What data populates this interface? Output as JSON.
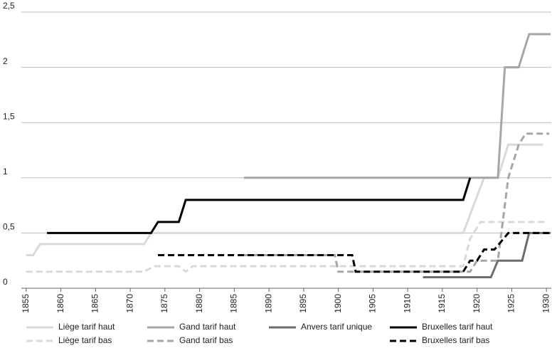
{
  "chart_data": {
    "type": "line",
    "xlim": [
      1854.3,
      1930.7
    ],
    "xticks": [
      1855,
      1860,
      1865,
      1870,
      1875,
      1880,
      1885,
      1890,
      1895,
      1900,
      1905,
      1910,
      1915,
      1920,
      1925,
      1930
    ],
    "ylim": [
      0,
      2.5
    ],
    "yticks": [
      0,
      {
        "value": 0.5,
        "label": "0,5"
      },
      1,
      {
        "value": 1.5,
        "label": "1,5"
      },
      2,
      {
        "value": 2.5,
        "label": "2,5"
      }
    ],
    "grid": true,
    "legend": "bottom",
    "series": [
      {
        "name": "Liège tarif haut",
        "color": "#d9d9d9",
        "dash": false,
        "x": [
          1855,
          1856,
          1857,
          1872,
          1873,
          1918,
          1921,
          1923,
          1924.5,
          1929.5
        ],
        "values": [
          0.3,
          0.3,
          0.4,
          0.4,
          0.5,
          0.5,
          1,
          1,
          1.3,
          1.3
        ]
      },
      {
        "name": "Gand tarif haut",
        "color": "#a6a6a6",
        "dash": false,
        "x": [
          1886.4,
          1923,
          1924,
          1926,
          1927.5,
          1930.6
        ],
        "values": [
          1,
          1,
          2,
          2,
          2.3,
          2.3
        ]
      },
      {
        "name": "Anvers tarif unique",
        "color": "#6d6d6d",
        "dash": false,
        "x": [
          1912.2,
          1922,
          1923,
          1926.5,
          1927.5,
          1930.6
        ],
        "values": [
          0.1,
          0.1,
          0.25,
          0.25,
          0.5,
          0.5
        ]
      },
      {
        "name": "Bruxelles tarif haut",
        "color": "#000000",
        "dash": false,
        "x": [
          1858,
          1873,
          1874,
          1877,
          1878,
          1918,
          1919
        ],
        "values": [
          0.5,
          0.5,
          0.6,
          0.6,
          0.8,
          0.8,
          1
        ]
      },
      {
        "name": "Liège tarif bas",
        "color": "#d9d9d9",
        "dash": true,
        "x": [
          1855,
          1872,
          1873.5,
          1877,
          1878,
          1879,
          1918,
          1919,
          1920.5,
          1930
        ],
        "values": [
          0.15,
          0.15,
          0.2,
          0.2,
          0.15,
          0.2,
          0.2,
          0.45,
          0.6,
          0.6
        ]
      },
      {
        "name": "Gand tarif bas",
        "color": "#a6a6a6",
        "dash": true,
        "x": [
          1886,
          1899.5,
          1900,
          1919,
          1920,
          1923,
          1924.5,
          1926,
          1927,
          1930.4
        ],
        "values": [
          0.3,
          0.3,
          0.15,
          0.15,
          0.25,
          0.25,
          1,
          1.3,
          1.4,
          1.4
        ]
      },
      {
        "name": "Bruxelles tarif bas",
        "color": "#000000",
        "dash": true,
        "x": [
          1874,
          1902,
          1902.5,
          1918,
          1919,
          1920,
          1921,
          1922.5,
          1924.5,
          1930.4
        ],
        "values": [
          0.3,
          0.3,
          0.15,
          0.15,
          0.25,
          0.25,
          0.35,
          0.35,
          0.5,
          0.5
        ]
      }
    ]
  }
}
